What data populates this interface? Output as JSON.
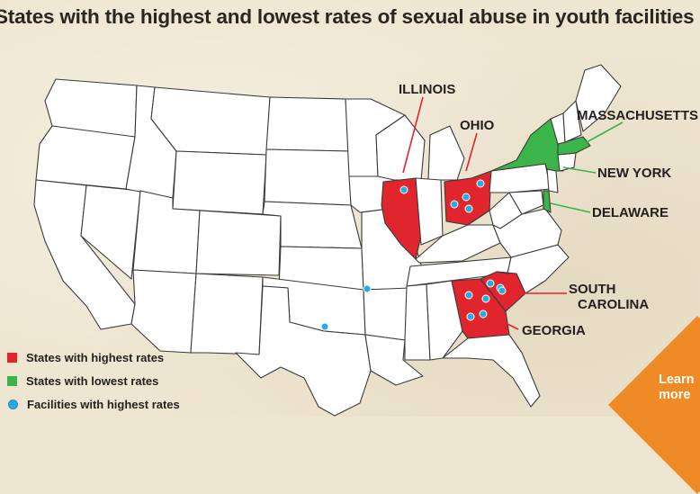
{
  "title": "States with the highest and lowest rates of sexual abuse in youth facilities",
  "highest_states": [
    "ILLINOIS",
    "OHIO",
    "SOUTH CAROLINA",
    "GEORGIA"
  ],
  "lowest_states": [
    "MASSACHUSETTS",
    "NEW YORK",
    "DELAWARE"
  ],
  "labels": {
    "illinois": "ILLINOIS",
    "ohio": "OHIO",
    "massachusetts": "MASSACHUSETTS",
    "new_york": "NEW YORK",
    "delaware": "DELAWARE",
    "south_carolina_1": "SOUTH",
    "south_carolina_2": "CAROLINA",
    "georgia": "GEORGIA"
  },
  "legend": [
    {
      "label": "States with highest rates",
      "color": "#e0262c"
    },
    {
      "label": "States with lowest rates",
      "color": "#3bb44a"
    },
    {
      "label": "Facilities with highest rates",
      "color": "#29abe2"
    }
  ],
  "colors": {
    "high": "#e0262c",
    "low": "#3bb44a",
    "facility": "#29abe2",
    "cta": "#f08a24"
  },
  "cta": {
    "line1": "Learn",
    "line2": "more"
  }
}
